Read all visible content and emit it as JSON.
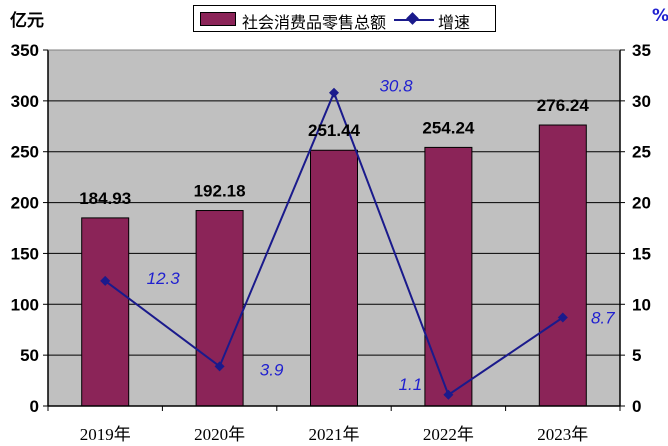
{
  "chart_data": {
    "type": "bar",
    "categories": [
      "2019年",
      "2020年",
      "2021年",
      "2022年",
      "2023年"
    ],
    "series": [
      {
        "name": "社会消费品零售总额",
        "type": "bar",
        "axis": "left",
        "values": [
          184.93,
          192.18,
          251.44,
          254.24,
          276.24
        ],
        "color": "#8b2458"
      },
      {
        "name": "增速",
        "type": "line",
        "axis": "right",
        "values": [
          12.3,
          3.9,
          30.8,
          1.1,
          8.7
        ],
        "color": "#1a1a8c"
      }
    ],
    "bar_labels": [
      "184.93",
      "192.18",
      "251.44",
      "254.24",
      "276.24"
    ],
    "line_labels": [
      "12.3",
      "3.9",
      "30.8",
      "1.1",
      "8.7"
    ],
    "left_unit": "亿元",
    "right_unit": "%",
    "ylim_left": [
      0,
      350
    ],
    "yticks_left": [
      "0",
      "50",
      "100",
      "150",
      "200",
      "250",
      "300",
      "350"
    ],
    "ylim_right": [
      0,
      35
    ],
    "yticks_right": [
      "0",
      "5",
      "10",
      "15",
      "20",
      "25",
      "30",
      "35"
    ],
    "grid": true,
    "legend_position": "top",
    "plot_background": "#c0c0c0",
    "line_label_color": "#1f1fd0"
  }
}
